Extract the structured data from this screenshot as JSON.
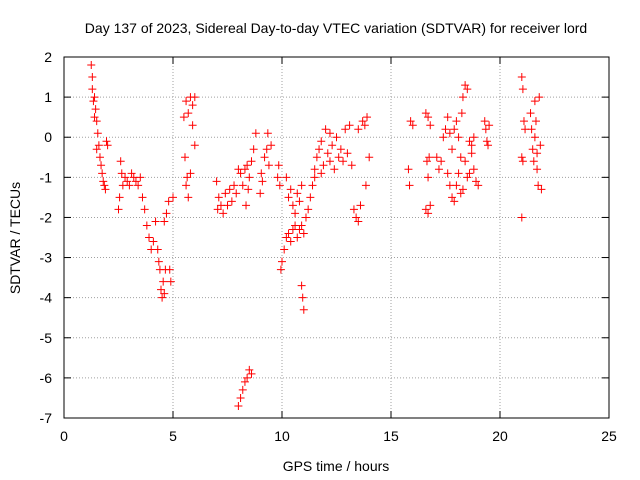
{
  "chart_data": {
    "type": "scatter",
    "title": "Day 137 of 2023, Sidereal Day-to-day VTEC variation (SDTVAR) for receiver lord",
    "xlabel": "GPS time / hours",
    "ylabel": "SDTVAR / TECUs",
    "xlim": [
      0,
      25
    ],
    "ylim": [
      -7,
      2
    ],
    "xticks": [
      0,
      5,
      10,
      15,
      20,
      25
    ],
    "yticks": [
      2,
      1,
      0,
      -1,
      -2,
      -3,
      -4,
      -5,
      -6,
      -7
    ],
    "grid": true,
    "marker": "+",
    "color": "#ff0000",
    "series": [
      {
        "name": "SDTVAR",
        "points": [
          [
            1.25,
            1.8
          ],
          [
            1.3,
            1.2
          ],
          [
            1.35,
            0.9
          ],
          [
            1.4,
            1.0
          ],
          [
            1.45,
            0.7
          ],
          [
            1.5,
            0.4
          ],
          [
            1.55,
            0.1
          ],
          [
            1.6,
            -0.2
          ],
          [
            1.65,
            -0.5
          ],
          [
            1.7,
            -0.7
          ],
          [
            1.75,
            -0.9
          ],
          [
            1.8,
            -1.1
          ],
          [
            1.85,
            -1.2
          ],
          [
            1.9,
            -1.3
          ],
          [
            1.95,
            -0.1
          ],
          [
            2.0,
            -0.2
          ],
          [
            1.3,
            1.5
          ],
          [
            1.4,
            0.5
          ],
          [
            1.5,
            -0.3
          ],
          [
            2.5,
            -1.8
          ],
          [
            2.55,
            -1.5
          ],
          [
            2.6,
            -0.6
          ],
          [
            2.65,
            -0.9
          ],
          [
            2.7,
            -1.2
          ],
          [
            2.8,
            -1.0
          ],
          [
            2.9,
            -1.1
          ],
          [
            3.0,
            -1.2
          ],
          [
            3.1,
            -0.9
          ],
          [
            3.2,
            -1.0
          ],
          [
            3.3,
            -1.1
          ],
          [
            3.4,
            -1.2
          ],
          [
            3.5,
            -1.0
          ],
          [
            3.6,
            -1.5
          ],
          [
            3.7,
            -1.8
          ],
          [
            3.8,
            -2.2
          ],
          [
            3.9,
            -2.5
          ],
          [
            4.0,
            -2.8
          ],
          [
            4.1,
            -2.6
          ],
          [
            4.2,
            -2.1
          ],
          [
            4.3,
            -2.8
          ],
          [
            4.35,
            -3.1
          ],
          [
            4.4,
            -3.3
          ],
          [
            4.45,
            -3.8
          ],
          [
            4.5,
            -4.0
          ],
          [
            4.55,
            -3.6
          ],
          [
            4.6,
            -3.9
          ],
          [
            4.65,
            -3.3
          ],
          [
            4.7,
            -1.9
          ],
          [
            4.8,
            -1.6
          ],
          [
            4.85,
            -3.3
          ],
          [
            4.9,
            -3.6
          ],
          [
            5.0,
            -1.5
          ],
          [
            4.6,
            -2.1
          ],
          [
            5.5,
            0.5
          ],
          [
            5.6,
            0.9
          ],
          [
            5.7,
            0.6
          ],
          [
            5.8,
            1.0
          ],
          [
            5.9,
            0.8
          ],
          [
            6.0,
            1.0
          ],
          [
            5.55,
            -0.5
          ],
          [
            5.6,
            -1.2
          ],
          [
            5.7,
            -1.5
          ],
          [
            5.8,
            -0.9
          ],
          [
            5.9,
            0.3
          ],
          [
            6.0,
            -0.2
          ],
          [
            5.65,
            -1.0
          ],
          [
            7.0,
            -1.1
          ],
          [
            7.05,
            -1.8
          ],
          [
            7.1,
            -1.5
          ],
          [
            7.2,
            -1.7
          ],
          [
            7.3,
            -1.9
          ],
          [
            7.4,
            -1.4
          ],
          [
            7.5,
            -1.7
          ],
          [
            7.6,
            -1.3
          ],
          [
            7.7,
            -1.6
          ],
          [
            7.8,
            -1.2
          ],
          [
            7.9,
            -1.4
          ],
          [
            8.0,
            -0.8
          ],
          [
            8.1,
            -0.9
          ],
          [
            8.2,
            -1.2
          ],
          [
            8.3,
            -0.8
          ],
          [
            8.4,
            -0.7
          ],
          [
            8.5,
            -1.0
          ],
          [
            8.6,
            -0.6
          ],
          [
            8.7,
            -0.3
          ],
          [
            8.8,
            0.1
          ],
          [
            8.35,
            -1.7
          ],
          [
            8.45,
            -1.3
          ],
          [
            8.0,
            -6.7
          ],
          [
            8.1,
            -6.5
          ],
          [
            8.2,
            -6.3
          ],
          [
            8.3,
            -6.1
          ],
          [
            8.4,
            -6.0
          ],
          [
            8.5,
            -5.8
          ],
          [
            8.6,
            -5.9
          ],
          [
            9.0,
            -1.4
          ],
          [
            9.05,
            -0.9
          ],
          [
            9.1,
            -1.1
          ],
          [
            9.2,
            -0.5
          ],
          [
            9.3,
            -0.3
          ],
          [
            9.35,
            0.1
          ],
          [
            9.4,
            -0.7
          ],
          [
            9.5,
            -0.2
          ],
          [
            9.8,
            -1.0
          ],
          [
            9.85,
            -0.7
          ],
          [
            9.9,
            -1.2
          ],
          [
            9.95,
            -3.3
          ],
          [
            10.0,
            -3.1
          ],
          [
            10.1,
            -2.8
          ],
          [
            10.2,
            -2.5
          ],
          [
            10.3,
            -2.4
          ],
          [
            10.4,
            -2.6
          ],
          [
            10.5,
            -2.3
          ],
          [
            10.6,
            -2.2
          ],
          [
            10.7,
            -2.5
          ],
          [
            10.8,
            -2.3
          ],
          [
            10.9,
            -2.2
          ],
          [
            11.0,
            -2.4
          ],
          [
            10.2,
            -1.0
          ],
          [
            10.3,
            -1.5
          ],
          [
            10.4,
            -1.3
          ],
          [
            10.5,
            -1.7
          ],
          [
            10.6,
            -1.9
          ],
          [
            10.7,
            -1.4
          ],
          [
            10.8,
            -1.6
          ],
          [
            10.9,
            -1.2
          ],
          [
            10.9,
            -3.7
          ],
          [
            10.95,
            -4.0
          ],
          [
            11.0,
            -4.3
          ],
          [
            11.1,
            -2.0
          ],
          [
            11.2,
            -1.8
          ],
          [
            11.3,
            -1.5
          ],
          [
            11.4,
            -1.2
          ],
          [
            11.5,
            -0.8
          ],
          [
            11.6,
            -0.5
          ],
          [
            11.7,
            -0.3
          ],
          [
            11.8,
            -0.1
          ],
          [
            11.9,
            -0.7
          ],
          [
            12.0,
            0.2
          ],
          [
            12.1,
            -0.4
          ],
          [
            12.2,
            -0.6
          ],
          [
            12.3,
            -0.2
          ],
          [
            12.4,
            -0.8
          ],
          [
            12.5,
            0.0
          ],
          [
            12.6,
            -0.5
          ],
          [
            12.7,
            -0.3
          ],
          [
            12.8,
            -0.6
          ],
          [
            12.9,
            0.2
          ],
          [
            13.0,
            -0.4
          ],
          [
            13.1,
            0.3
          ],
          [
            13.2,
            -0.7
          ],
          [
            13.3,
            -1.8
          ],
          [
            13.4,
            -2.0
          ],
          [
            13.5,
            -2.1
          ],
          [
            13.6,
            -1.7
          ],
          [
            13.7,
            0.4
          ],
          [
            13.8,
            0.3
          ],
          [
            13.9,
            0.5
          ],
          [
            14.0,
            -0.5
          ],
          [
            13.85,
            -1.2
          ],
          [
            11.5,
            -1.0
          ],
          [
            11.8,
            -0.9
          ],
          [
            12.2,
            0.1
          ],
          [
            13.5,
            0.2
          ],
          [
            15.8,
            -0.8
          ],
          [
            15.85,
            -1.2
          ],
          [
            15.9,
            0.4
          ],
          [
            16.0,
            0.3
          ],
          [
            16.6,
            0.6
          ],
          [
            16.7,
            0.5
          ],
          [
            16.8,
            0.3
          ],
          [
            16.65,
            -0.6
          ],
          [
            16.7,
            -1.0
          ],
          [
            16.75,
            -0.5
          ],
          [
            16.6,
            -1.8
          ],
          [
            16.7,
            -1.9
          ],
          [
            16.8,
            -1.7
          ],
          [
            17.1,
            -0.5
          ],
          [
            17.2,
            -0.8
          ],
          [
            17.3,
            -0.6
          ],
          [
            17.4,
            0.0
          ],
          [
            17.5,
            0.2
          ],
          [
            17.6,
            -0.9
          ],
          [
            17.7,
            -1.2
          ],
          [
            17.8,
            -1.5
          ],
          [
            17.9,
            -1.6
          ],
          [
            18.0,
            -1.2
          ],
          [
            18.1,
            -0.9
          ],
          [
            18.2,
            -0.5
          ],
          [
            18.25,
            0.6
          ],
          [
            18.3,
            1.0
          ],
          [
            18.4,
            1.3
          ],
          [
            18.5,
            1.2
          ],
          [
            18.6,
            -0.1
          ],
          [
            18.7,
            -0.4
          ],
          [
            18.8,
            -0.8
          ],
          [
            18.9,
            -1.1
          ],
          [
            19.0,
            -1.2
          ],
          [
            17.6,
            0.5
          ],
          [
            17.7,
            0.1
          ],
          [
            17.8,
            -0.3
          ],
          [
            17.9,
            0.2
          ],
          [
            18.0,
            0.4
          ],
          [
            18.1,
            0.0
          ],
          [
            18.2,
            -1.4
          ],
          [
            18.3,
            -1.3
          ],
          [
            18.4,
            -0.6
          ],
          [
            18.5,
            -1.0
          ],
          [
            18.6,
            -0.9
          ],
          [
            18.7,
            -0.2
          ],
          [
            18.8,
            0.0
          ],
          [
            19.3,
            0.4
          ],
          [
            19.35,
            0.2
          ],
          [
            19.4,
            -0.1
          ],
          [
            19.45,
            -0.2
          ],
          [
            19.5,
            0.3
          ],
          [
            21.0,
            1.5
          ],
          [
            21.05,
            1.2
          ],
          [
            21.1,
            0.4
          ],
          [
            21.15,
            0.2
          ],
          [
            21.0,
            -0.5
          ],
          [
            21.05,
            -0.6
          ],
          [
            21.0,
            -2.0
          ],
          [
            21.4,
            0.6
          ],
          [
            21.45,
            0.2
          ],
          [
            21.5,
            -0.3
          ],
          [
            21.55,
            -0.6
          ],
          [
            21.6,
            0.9
          ],
          [
            21.65,
            0.4
          ],
          [
            21.7,
            -0.8
          ],
          [
            21.75,
            -1.2
          ],
          [
            21.8,
            1.0
          ],
          [
            21.85,
            -0.2
          ],
          [
            21.9,
            -1.3
          ],
          [
            21.7,
            -0.4
          ],
          [
            21.6,
            0.0
          ]
        ]
      }
    ]
  }
}
